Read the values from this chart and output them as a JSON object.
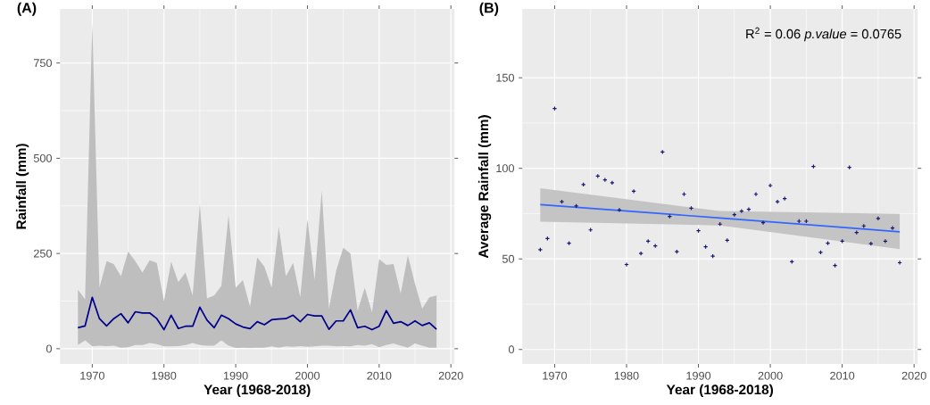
{
  "chart_data": [
    {
      "type": "line",
      "title": "(A)",
      "xlabel": "Year (1968-2018)",
      "ylabel": "Rainfall (mm)",
      "xlim": [
        1965.5,
        2020.5
      ],
      "ylim": [
        -40,
        892
      ],
      "xticks": [
        1970,
        1980,
        1990,
        2000,
        2010,
        2020
      ],
      "yticks": [
        0,
        250,
        500,
        750
      ],
      "grid": true,
      "series": [
        {
          "color": "#00008b",
          "marker": "none",
          "x": [
            1968,
            1969,
            1970,
            1971,
            1972,
            1973,
            1974,
            1975,
            1976,
            1977,
            1978,
            1979,
            1980,
            1981,
            1982,
            1983,
            1984,
            1985,
            1986,
            1987,
            1988,
            1989,
            1990,
            1991,
            1992,
            1993,
            1994,
            1995,
            1996,
            1997,
            1998,
            1999,
            2000,
            2001,
            2002,
            2003,
            2004,
            2005,
            2006,
            2007,
            2008,
            2009,
            2010,
            2011,
            2012,
            2013,
            2014,
            2015,
            2016,
            2017,
            2018
          ],
          "values": [
            55,
            60,
            135,
            79,
            60,
            79,
            92,
            68,
            97,
            94,
            94,
            79,
            50,
            88,
            53,
            59,
            59,
            109,
            75,
            55,
            88,
            79,
            65,
            57,
            53,
            71,
            63,
            76,
            78,
            79,
            88,
            71,
            90,
            86,
            86,
            51,
            73,
            73,
            102,
            55,
            59,
            50,
            59,
            100,
            67,
            71,
            61,
            73,
            61,
            68,
            51
          ],
          "lower": [
            10,
            22,
            6,
            8,
            7,
            8,
            3,
            4,
            10,
            10,
            15,
            12,
            6,
            6,
            7,
            10,
            15,
            10,
            8,
            8,
            22,
            8,
            2,
            3,
            2,
            3,
            3,
            6,
            3,
            6,
            5,
            7,
            5,
            6,
            8,
            8,
            6,
            7,
            6,
            10,
            8,
            12,
            4,
            10,
            14,
            8,
            3,
            14,
            8,
            3,
            3
          ],
          "upper": [
            155,
            130,
            855,
            160,
            230,
            222,
            190,
            255,
            230,
            200,
            232,
            225,
            125,
            228,
            175,
            200,
            140,
            380,
            132,
            140,
            165,
            350,
            160,
            180,
            110,
            240,
            215,
            160,
            320,
            190,
            225,
            135,
            340,
            180,
            415,
            105,
            205,
            265,
            250,
            100,
            160,
            95,
            235,
            220,
            222,
            145,
            245,
            170,
            105,
            135,
            140
          ]
        }
      ]
    },
    {
      "type": "scatter",
      "title": "(B)",
      "xlabel": "Year (1968-2018)",
      "ylabel": "Average Rainfall (mm)",
      "xlim": [
        1965.5,
        2020.5
      ],
      "ylim": [
        -8,
        188
      ],
      "xticks": [
        1970,
        1980,
        1990,
        2000,
        2010,
        2020
      ],
      "yticks": [
        0,
        50,
        100,
        150
      ],
      "grid": true,
      "annotations": [
        "R$^{2}$ = 0.06    *p.value* = 0.0765"
      ],
      "series": [
        {
          "type": "scatter",
          "color": "#191970",
          "marker": "cross",
          "x": [
            1968,
            1969,
            1970,
            1971,
            1972,
            1973,
            1974,
            1975,
            1976,
            1977,
            1978,
            1979,
            1980,
            1981,
            1982,
            1983,
            1984,
            1985,
            1986,
            1987,
            1988,
            1989,
            1990,
            1991,
            1992,
            1993,
            1994,
            1995,
            1996,
            1997,
            1998,
            1999,
            2000,
            2001,
            2002,
            2003,
            2004,
            2005,
            2006,
            2007,
            2008,
            2009,
            2010,
            2011,
            2012,
            2013,
            2014,
            2015,
            2016,
            2017,
            2018
          ],
          "values": [
            55.1,
            61.3,
            133,
            81.6,
            58.7,
            79.2,
            91,
            66,
            95.7,
            93.6,
            92,
            77,
            46.9,
            87.4,
            53,
            59.8,
            57.2,
            109,
            73.4,
            54,
            85.7,
            78,
            65.6,
            56.7,
            51.5,
            69.2,
            60.3,
            74.4,
            76.4,
            77.4,
            85.7,
            70,
            90.5,
            81.6,
            83.3,
            48.4,
            70.8,
            70.8,
            101,
            53.6,
            58.7,
            46.4,
            59.8,
            100.5,
            64.6,
            68.2,
            58.4,
            72.3,
            59.8,
            67,
            47.9
          ]
        },
        {
          "type": "line",
          "color": "#3366ff",
          "marker": "none",
          "x": [
            1968,
            1993,
            2018
          ],
          "values": [
            80,
            72.6,
            65
          ],
          "lower": [
            70.6,
            68.5,
            55.4
          ],
          "upper": [
            89,
            76.4,
            74.8
          ]
        }
      ]
    }
  ]
}
